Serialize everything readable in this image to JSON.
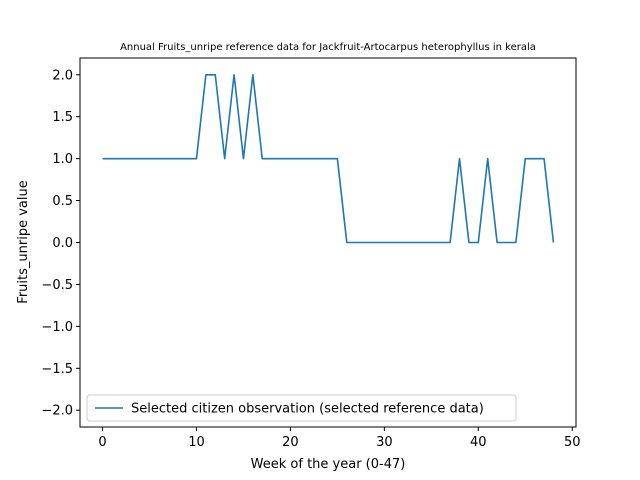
{
  "chart_data": {
    "type": "line",
    "title": "Annual Fruits_unripe reference data for Jackfruit-Artocarpus heterophyllus in kerala",
    "xlabel": "Week of the year (0-47)",
    "ylabel": "Fruits_unripe value",
    "xlim": [
      -2.4,
      50.4
    ],
    "ylim": [
      -2.2,
      2.2
    ],
    "xticks": [
      0,
      10,
      20,
      30,
      40,
      50
    ],
    "yticks": [
      -2.0,
      -1.5,
      -1.0,
      -0.5,
      0.0,
      0.5,
      1.0,
      1.5,
      2.0
    ],
    "xtick_labels": [
      "0",
      "10",
      "20",
      "30",
      "40",
      "50"
    ],
    "ytick_labels": [
      "−2.0",
      "−1.5",
      "−1.0",
      "−0.5",
      "0.0",
      "0.5",
      "1.0",
      "1.5",
      "2.0"
    ],
    "grid": false,
    "legend_position": "lower-left",
    "series": [
      {
        "name": "Selected citizen observation (selected reference data)",
        "color": "#1f77b4",
        "x": [
          0,
          1,
          2,
          3,
          4,
          5,
          6,
          7,
          8,
          9,
          10,
          11,
          12,
          13,
          14,
          15,
          16,
          17,
          18,
          19,
          20,
          21,
          22,
          23,
          24,
          25,
          26,
          27,
          28,
          29,
          30,
          31,
          32,
          33,
          34,
          35,
          36,
          37,
          38,
          39,
          40,
          41,
          42,
          43,
          44,
          45,
          46,
          47,
          48
        ],
        "y": [
          1,
          1,
          1,
          1,
          1,
          1,
          1,
          1,
          1,
          1,
          1,
          2,
          2,
          1,
          2,
          1,
          2,
          1,
          1,
          1,
          1,
          1,
          1,
          1,
          1,
          1,
          0,
          0,
          0,
          0,
          0,
          0,
          0,
          0,
          0,
          0,
          0,
          0,
          1,
          0,
          0,
          1,
          0,
          0,
          0,
          1,
          1,
          1,
          0
        ]
      }
    ]
  }
}
